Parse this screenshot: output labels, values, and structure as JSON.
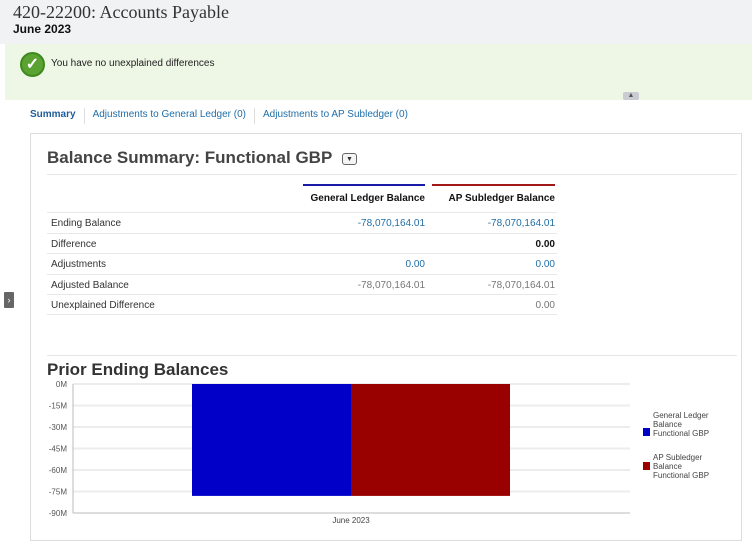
{
  "header": {
    "title": "420-22200: Accounts Payable",
    "period": "June 2023"
  },
  "status": {
    "message": "You have no unexplained differences",
    "icon": "check-circle-icon"
  },
  "tabs": [
    {
      "label": "Summary"
    },
    {
      "label": "Adjustments to General Ledger (0)"
    },
    {
      "label": "Adjustments to AP Subledger (0)"
    }
  ],
  "balance_summary": {
    "title": "Balance Summary: Functional GBP",
    "columns": [
      "General Ledger Balance",
      "AP Subledger Balance"
    ],
    "rows": [
      {
        "label": "Ending Balance",
        "gl": "-78,070,164.01",
        "ap": "-78,070,164.01"
      },
      {
        "label": "Difference",
        "gl": "",
        "ap": "0.00"
      },
      {
        "label": "Adjustments",
        "gl": "0.00",
        "ap": "0.00"
      },
      {
        "label": "Adjusted Balance",
        "gl": "-78,070,164.01",
        "ap": "-78,070,164.01"
      },
      {
        "label": "Unexplained Difference",
        "gl": "",
        "ap": "0.00"
      }
    ]
  },
  "chart_data": {
    "type": "bar",
    "title": "Prior Ending Balances",
    "categories": [
      "June 2023"
    ],
    "series": [
      {
        "name": "General Ledger Balance Functional GBP",
        "values": [
          -78070164.01
        ],
        "color": "#0000c8"
      },
      {
        "name": "AP Subledger Balance Functional GBP",
        "values": [
          -78070164.01
        ],
        "color": "#990000"
      }
    ],
    "ylim": [
      -90000000,
      0
    ],
    "yticks": [
      "0M",
      "-15M",
      "-30M",
      "-45M",
      "-60M",
      "-75M",
      "-90M"
    ],
    "grid": true,
    "legend": "right"
  }
}
